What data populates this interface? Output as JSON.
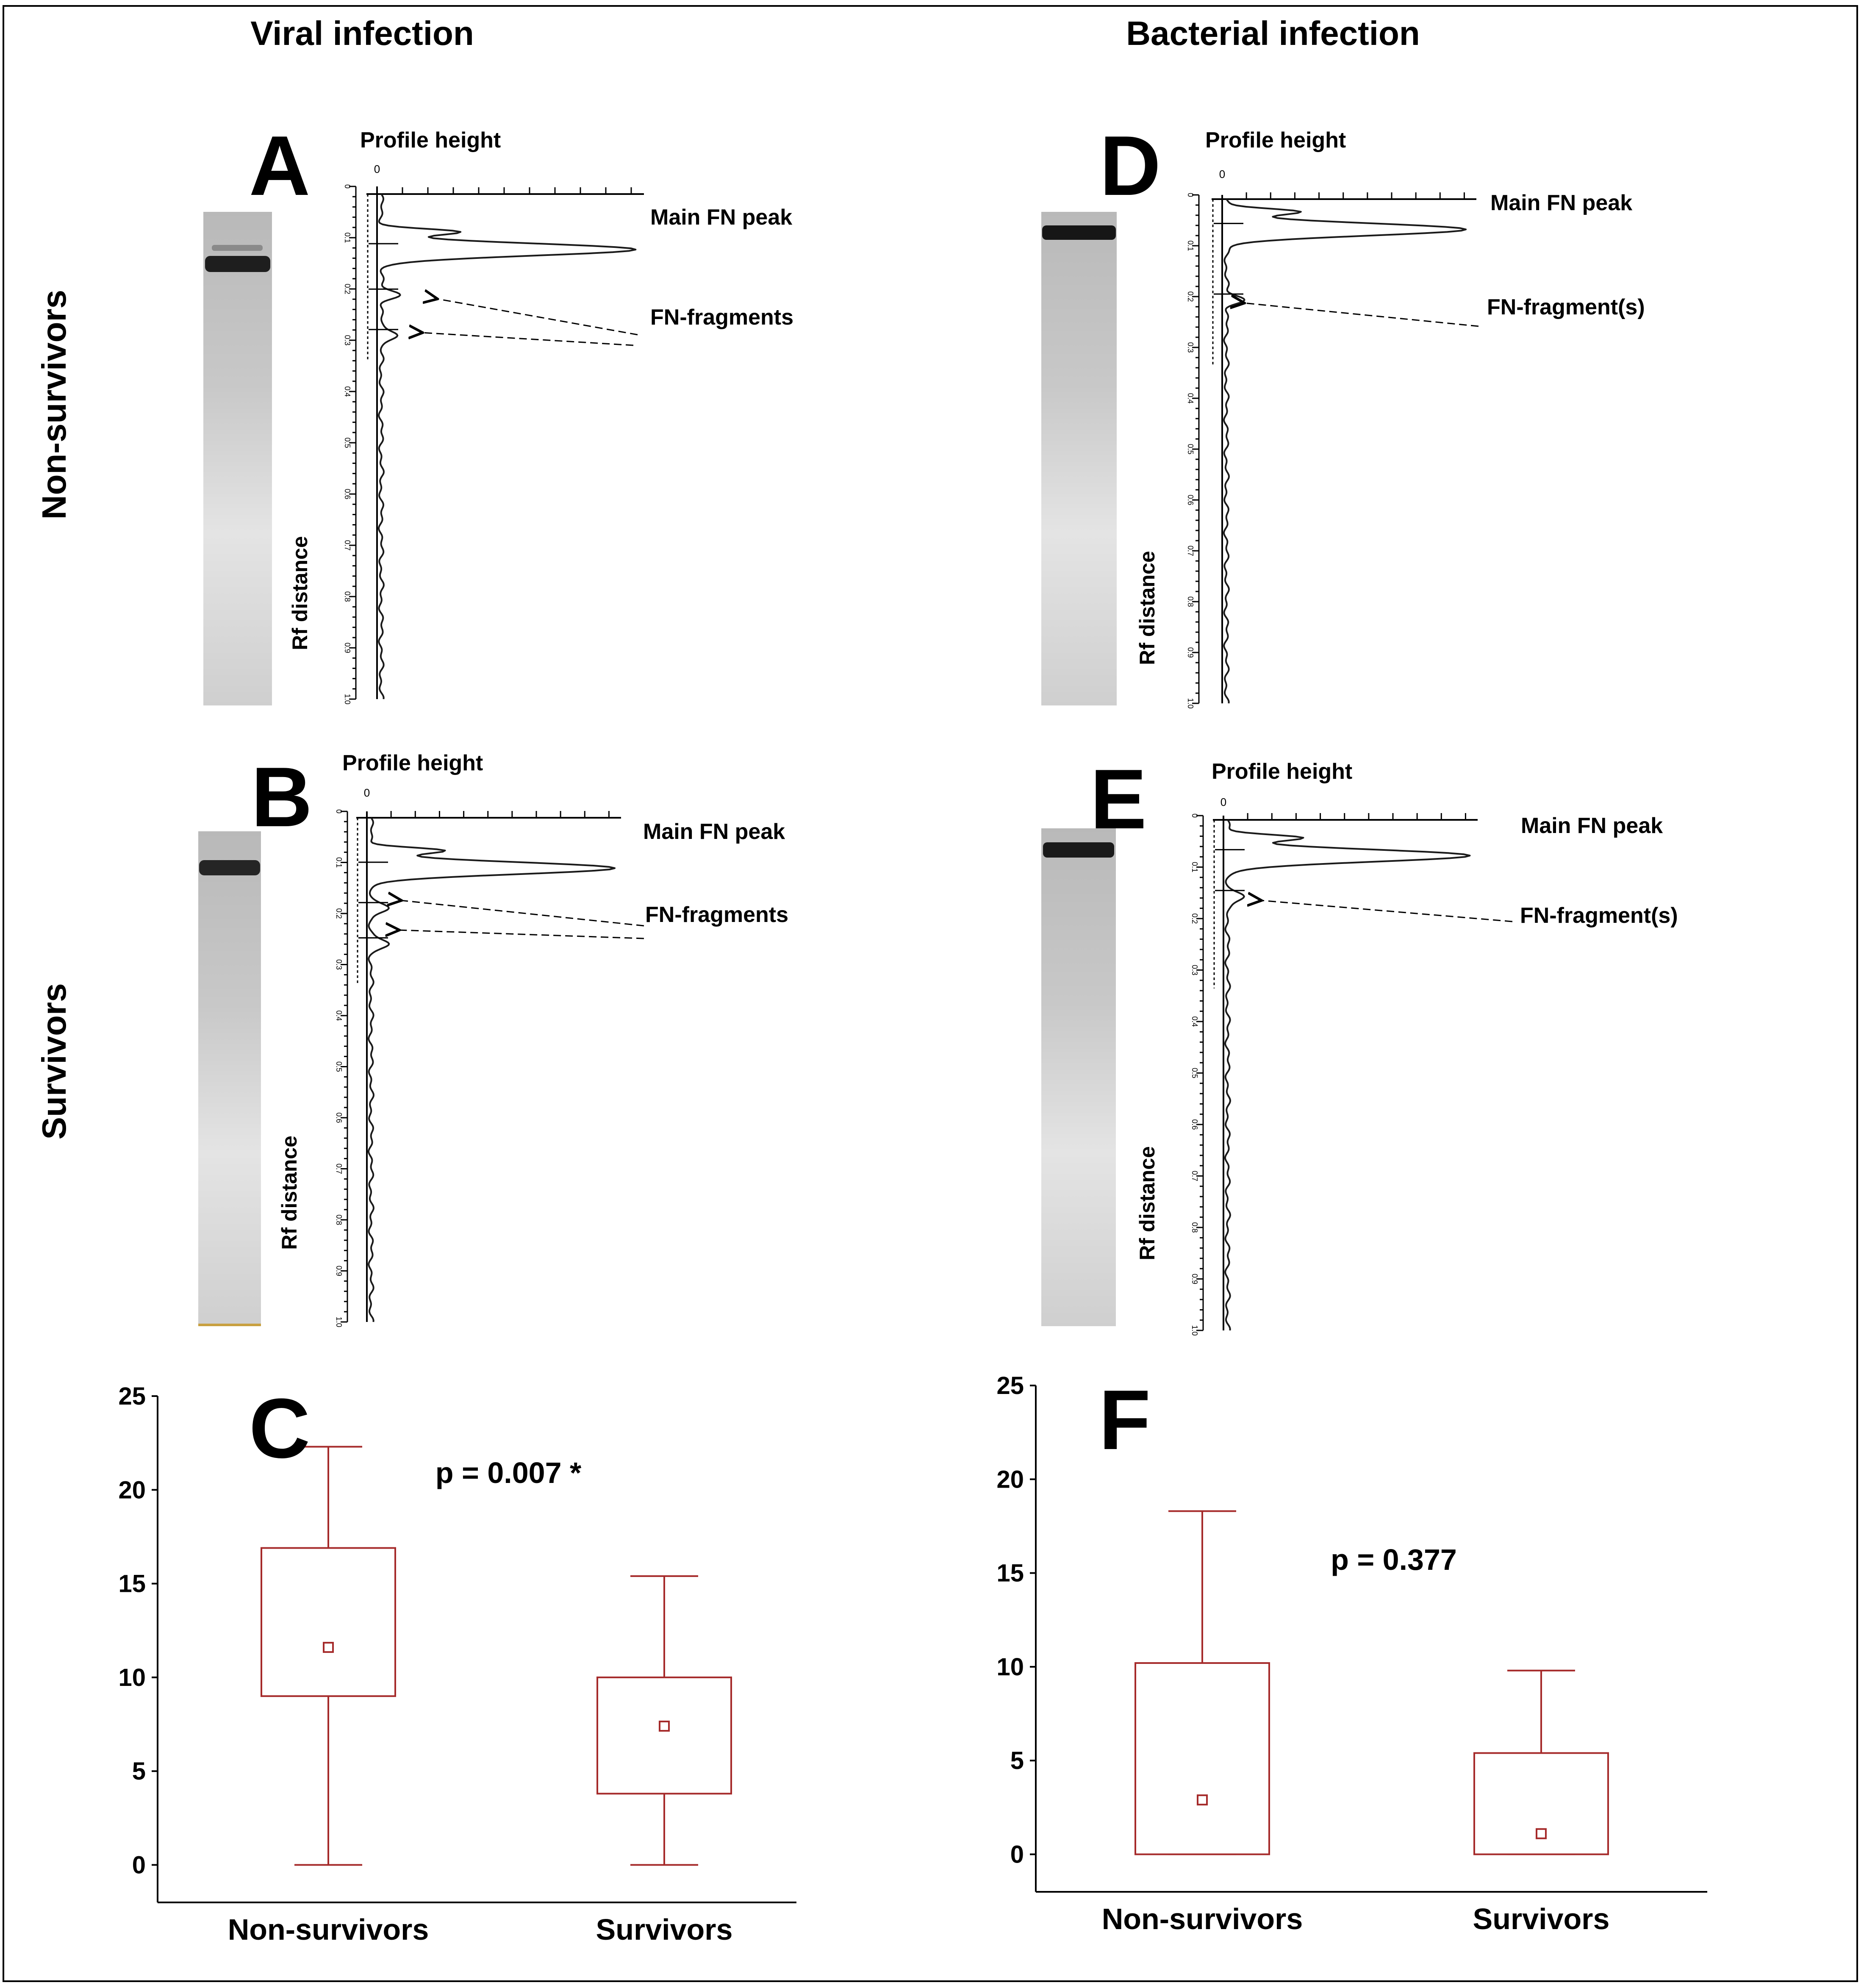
{
  "columns": {
    "viral": "Viral infection",
    "bacterial": "Bacterial infection"
  },
  "rows": {
    "nonsurvivors": "Non-survivors",
    "survivors": "Survivors"
  },
  "densitometry": {
    "axis_title_x": "Profile height",
    "axis_title_y": "Rf distance",
    "zero_label": "0",
    "rf_ticks": [
      "0",
      "0.1",
      "0.2",
      "0.3",
      "0.4",
      "0.5",
      "0.6",
      "0.7",
      "0.8",
      "0.9",
      "1.0"
    ],
    "panels": [
      {
        "letter": "A",
        "main_label": "Main FN peak",
        "frag_label": "FN-fragments",
        "main_rf": 0.11,
        "frag_rf": [
          0.2,
          0.28
        ]
      },
      {
        "letter": "B",
        "main_label": "Main FN peak",
        "frag_label": "FN-fragments",
        "main_rf": 0.1,
        "frag_rf": [
          0.18,
          0.25
        ]
      },
      {
        "letter": "D",
        "main_label": "Main FN peak",
        "frag_label": "FN-fragment(s)",
        "main_rf": 0.06,
        "frag_rf": [
          0.2
        ]
      },
      {
        "letter": "E",
        "main_label": "Main FN peak",
        "frag_label": "FN-fragment(s)",
        "main_rf": 0.07,
        "frag_rf": [
          0.15
        ]
      }
    ]
  },
  "chart_data": [
    {
      "type": "box",
      "panel": "C",
      "annotation": "p = 0.007 *",
      "categories": [
        "Non-survivors",
        "Survivors"
      ],
      "y_ticks": [
        "0",
        "5",
        "10",
        "15",
        "20",
        "25"
      ],
      "ylim": [
        -2,
        25
      ],
      "series": [
        {
          "name": "Non-survivors",
          "whisker_low": 0,
          "q1": 9,
          "median": 11.6,
          "q3": 16.9,
          "whisker_high": 22.3
        },
        {
          "name": "Survivors",
          "whisker_low": 0,
          "q1": 3.8,
          "median": 7.4,
          "q3": 10,
          "whisker_high": 15.4
        }
      ]
    },
    {
      "type": "box",
      "panel": "F",
      "annotation": "p = 0.377",
      "categories": [
        "Non-survivors",
        "Survivors"
      ],
      "y_ticks": [
        "0",
        "5",
        "10",
        "15",
        "20",
        "25"
      ],
      "ylim": [
        -2,
        25
      ],
      "series": [
        {
          "name": "Non-survivors",
          "whisker_low": 0,
          "q1": 0,
          "median": 2.9,
          "q3": 10.2,
          "whisker_high": 18.3
        },
        {
          "name": "Survivors",
          "whisker_low": 0,
          "q1": 0,
          "median": 1.1,
          "q3": 5.4,
          "whisker_high": 9.8
        }
      ]
    }
  ]
}
